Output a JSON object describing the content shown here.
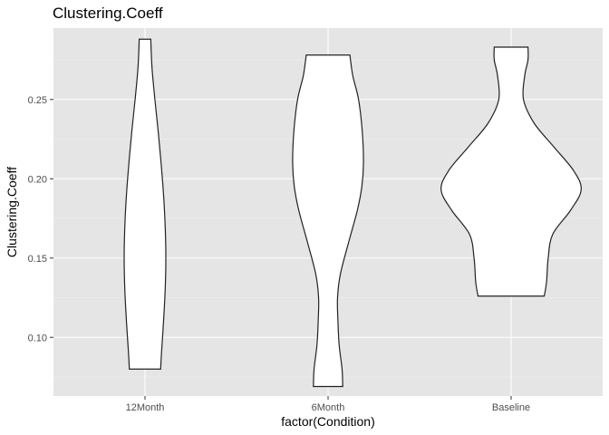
{
  "chart_data": {
    "type": "violin",
    "title": "Clustering.Coeff",
    "xlabel": "factor(Condition)",
    "ylabel": "Clustering.Coeff",
    "categories": [
      "12Month",
      "6Month",
      "Baseline"
    ],
    "ylim": [
      0.063,
      0.295
    ],
    "yticks": [
      0.1,
      0.15,
      0.2,
      0.25
    ],
    "ytick_labels": [
      "0.10",
      "0.15",
      "0.20",
      "0.25"
    ],
    "grid": true,
    "legend": "none",
    "violins": [
      {
        "name": "12Month",
        "ymin": 0.08,
        "ymax": 0.288,
        "profile": [
          [
            0.08,
            0.19
          ],
          [
            0.09,
            0.2
          ],
          [
            0.11,
            0.225
          ],
          [
            0.13,
            0.245
          ],
          [
            0.15,
            0.253
          ],
          [
            0.17,
            0.245
          ],
          [
            0.19,
            0.225
          ],
          [
            0.21,
            0.195
          ],
          [
            0.23,
            0.16
          ],
          [
            0.25,
            0.12
          ],
          [
            0.27,
            0.085
          ],
          [
            0.288,
            0.07
          ]
        ]
      },
      {
        "name": "6Month",
        "ymin": 0.069,
        "ymax": 0.278,
        "profile": [
          [
            0.069,
            0.178
          ],
          [
            0.08,
            0.17
          ],
          [
            0.095,
            0.135
          ],
          [
            0.11,
            0.12
          ],
          [
            0.125,
            0.115
          ],
          [
            0.14,
            0.15
          ],
          [
            0.16,
            0.25
          ],
          [
            0.18,
            0.355
          ],
          [
            0.195,
            0.41
          ],
          [
            0.21,
            0.43
          ],
          [
            0.23,
            0.415
          ],
          [
            0.25,
            0.37
          ],
          [
            0.265,
            0.3
          ],
          [
            0.278,
            0.265
          ]
        ]
      },
      {
        "name": "Baseline",
        "ymin": 0.126,
        "ymax": 0.283,
        "profile": [
          [
            0.126,
            0.402
          ],
          [
            0.135,
            0.43
          ],
          [
            0.15,
            0.45
          ],
          [
            0.165,
            0.505
          ],
          [
            0.18,
            0.72
          ],
          [
            0.193,
            0.85
          ],
          [
            0.205,
            0.76
          ],
          [
            0.22,
            0.52
          ],
          [
            0.235,
            0.28
          ],
          [
            0.25,
            0.15
          ],
          [
            0.265,
            0.165
          ],
          [
            0.275,
            0.205
          ],
          [
            0.283,
            0.205
          ]
        ]
      }
    ]
  },
  "colors": {
    "panel_background": "#e5e5e5",
    "grid_major": "#ffffff",
    "violin_fill": "#ffffff",
    "violin_outline": "#222222",
    "tick_label": "#4d4d4d"
  }
}
